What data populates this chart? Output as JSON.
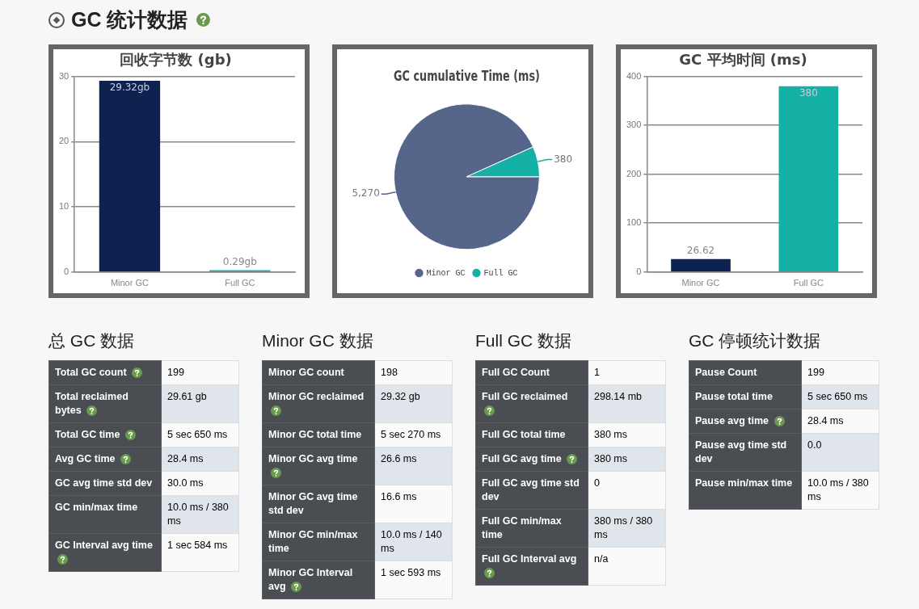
{
  "chart_data": [
    {
      "type": "other",
      "title": "GC 统计数据"
    },
    {
      "type": "bar",
      "title": "回收字节数 (gb)",
      "categories": [
        "Minor GC",
        "Full GC"
      ],
      "values": [
        29.32,
        0.29
      ],
      "colors": [
        "#0e2250",
        "#15b0a6"
      ],
      "value_labels": [
        "29.32gb",
        "0.29gb"
      ],
      "ylim": [
        0,
        30
      ],
      "yticks": [
        0,
        10,
        20,
        30
      ],
      "grid": "y",
      "legend": false
    },
    {
      "type": "pie",
      "title": "GC cumulative Time (ms)",
      "categories": [
        "Minor GC",
        "Full GC"
      ],
      "values": [
        5270,
        380
      ],
      "colors": [
        "#56658a",
        "#15b0a6"
      ],
      "value_labels": [
        "5,270",
        "380"
      ],
      "legend": "bottom"
    },
    {
      "type": "bar",
      "title": "GC 平均时间 (ms)",
      "categories": [
        "Minor GC",
        "Full GC"
      ],
      "values": [
        26.62,
        380
      ],
      "colors": [
        "#0e2250",
        "#15b0a6"
      ],
      "value_labels": [
        "26.62",
        "380"
      ],
      "ylim": [
        0,
        400
      ],
      "yticks": [
        0,
        100,
        200,
        300,
        400
      ],
      "grid": "y",
      "legend": false
    },
    {
      "type": "other",
      "title": "总 GC 数据",
      "annotations": [
        "Total GC count",
        "199",
        "Total reclaimed bytes",
        "29.61 gb",
        "Total GC time",
        "5 sec 650 ms",
        "Avg GC time",
        "28.4 ms",
        "GC avg time std dev",
        "30.0 ms",
        "GC min/max time",
        "10.0 ms / 380 ms",
        "GC Interval avg time",
        "1 sec 584 ms"
      ]
    },
    {
      "type": "other",
      "title": "Minor GC 数据",
      "annotations": [
        "Minor GC count",
        "198",
        "Minor GC reclaimed",
        "29.32 gb",
        "Minor GC total time",
        "5 sec 270 ms",
        "Minor GC avg time",
        "26.6 ms",
        "Minor GC avg time std dev",
        "16.6 ms",
        "Minor GC min/max time",
        "10.0 ms / 140 ms",
        "Minor GC Interval avg",
        "1 sec 593 ms"
      ]
    },
    {
      "type": "other",
      "title": "Full GC 数据",
      "annotations": [
        "Full GC Count",
        "1",
        "Full GC reclaimed",
        "298.14 mb",
        "Full GC total time",
        "380 ms",
        "Full GC avg time",
        "380 ms",
        "Full GC avg time std dev",
        "0",
        "Full GC min/max time",
        "380 ms / 380 ms",
        "Full GC Interval avg",
        "n/a"
      ]
    },
    {
      "type": "other",
      "title": "GC 停顿统计数据",
      "annotations": [
        "Pause Count",
        "199",
        "Pause total time",
        "5 sec 650 ms",
        "Pause avg time",
        "28.4 ms",
        "Pause avg time std dev",
        "0.0",
        "Pause min/max time",
        "10.0 ms / 380 ms"
      ]
    }
  ]
}
